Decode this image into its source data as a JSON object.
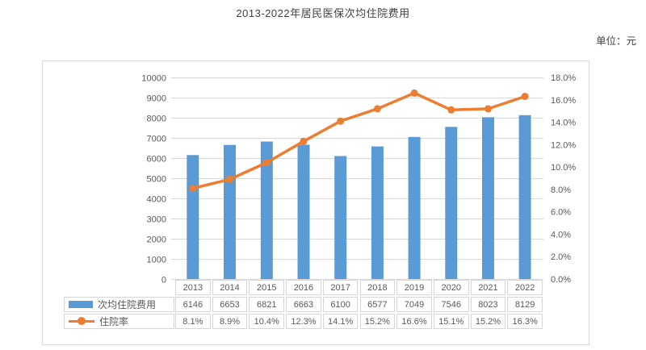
{
  "title": "2013-2022年居民医保次均住院费用",
  "unit_label": "单位：元",
  "colors": {
    "bar": "#5b9bd5",
    "line": "#ed7d31",
    "grid": "#d9d9d9",
    "panel_border": "#d9d9d9",
    "cell_border": "#d6d6d6",
    "text": "#595959",
    "title_text": "#404040"
  },
  "chart_data": {
    "type": "bar",
    "subtype": "bar+line-combo",
    "title": "2013-2022年居民医保次均住院费用",
    "unit": "单位：元",
    "categories": [
      "2013",
      "2014",
      "2015",
      "2016",
      "2017",
      "2018",
      "2019",
      "2020",
      "2021",
      "2022"
    ],
    "series": [
      {
        "name": "次均住院费用",
        "type": "bar",
        "axis": "left",
        "color": "#5b9bd5",
        "values": [
          6146,
          6653,
          6821,
          6663,
          6100,
          6577,
          7049,
          7546,
          8023,
          8129
        ],
        "display_values": [
          "6146",
          "6653",
          "6821",
          "6663",
          "6100",
          "6577",
          "7049",
          "7546",
          "8023",
          "8129"
        ]
      },
      {
        "name": "住院率",
        "type": "line",
        "axis": "right",
        "color": "#ed7d31",
        "values": [
          8.1,
          8.9,
          10.4,
          12.3,
          14.1,
          15.2,
          16.6,
          15.1,
          15.2,
          16.3
        ],
        "display_values": [
          "8.1%",
          "8.9%",
          "10.4%",
          "12.3%",
          "14.1%",
          "15.2%",
          "16.6%",
          "15.1%",
          "15.2%",
          "16.3%"
        ]
      }
    ],
    "left_axis": {
      "min": 0,
      "max": 10000,
      "step": 1000
    },
    "right_axis": {
      "min": 0,
      "max": 18,
      "step": 2,
      "suffix": "%",
      "decimals": 1
    },
    "grid": true,
    "legend_position": "data-table-left"
  }
}
